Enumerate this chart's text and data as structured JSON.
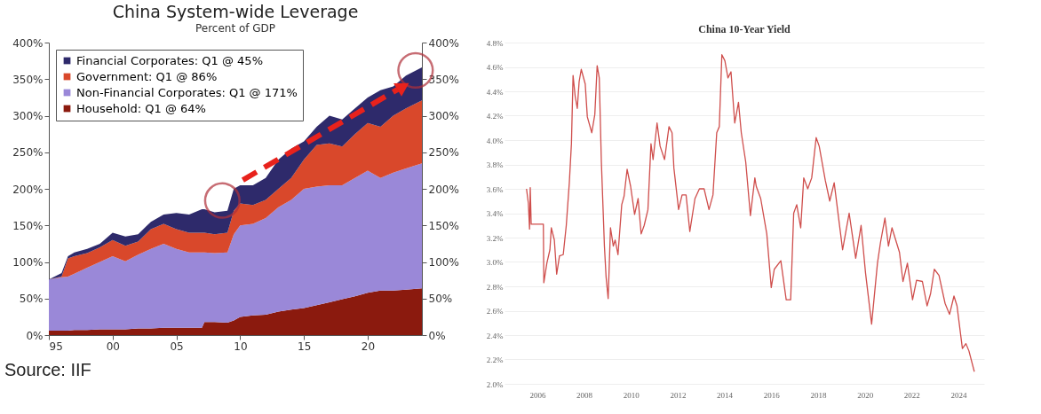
{
  "chart_data": [
    {
      "type": "area",
      "title": "China System-wide Leverage",
      "subtitle": "Percent of GDP",
      "stacked": true,
      "legend": "top left",
      "grid": false,
      "x": [
        1995,
        1996,
        1996.5,
        1997,
        1998,
        1999,
        2000,
        2001,
        2002,
        2003,
        2004,
        2005,
        2006,
        2007,
        2007.2,
        2008,
        2009,
        2009.5,
        2010,
        2011,
        2012,
        2013,
        2014,
        2015,
        2016,
        2017,
        2018,
        2019,
        2020,
        2021,
        2022,
        2023,
        2024.25
      ],
      "series": [
        {
          "name": "Household: Q1 @ 64%",
          "color": "#8b1a0e",
          "values": [
            6,
            6,
            6,
            7,
            7,
            8,
            8,
            8,
            9,
            9,
            10,
            10,
            10,
            10,
            18,
            18,
            17,
            20,
            25,
            27,
            28,
            32,
            35,
            37,
            41,
            45,
            49,
            53,
            58,
            61,
            61,
            62,
            64
          ]
        },
        {
          "name": "Non-Financial Corporates: Q1 @ 171%",
          "color": "#9a88d8",
          "values": [
            70,
            73,
            74,
            77,
            85,
            92,
            100,
            93,
            101,
            109,
            115,
            108,
            103,
            103,
            95,
            94,
            96,
            118,
            125,
            125,
            132,
            143,
            150,
            163,
            162,
            160,
            156,
            162,
            167,
            154,
            161,
            166,
            171
          ]
        },
        {
          "name": "Government: Q1 @ 86%",
          "color": "#d9482b",
          "values": [
            0,
            1,
            25,
            24,
            20,
            20,
            22,
            21,
            18,
            27,
            27,
            27,
            27,
            27,
            27,
            26,
            27,
            32,
            30,
            26,
            25,
            25,
            30,
            40,
            57,
            57,
            53,
            60,
            65,
            70,
            78,
            82,
            86
          ]
        },
        {
          "name": "Financial Corporates: Q1 @ 45%",
          "color": "#2e2a6b",
          "values": [
            0,
            5,
            3,
            5,
            6,
            5,
            10,
            13,
            10,
            10,
            13,
            22,
            25,
            32,
            32,
            30,
            30,
            30,
            25,
            27,
            30,
            40,
            40,
            25,
            25,
            38,
            37,
            35,
            35,
            50,
            40,
            45,
            45
          ]
        }
      ],
      "xlim": [
        1995,
        2024.25
      ],
      "xticks": [
        {
          "value": 1995,
          "label": "95"
        },
        {
          "value": 2000,
          "label": "00"
        },
        {
          "value": 2005,
          "label": "05"
        },
        {
          "value": 2010,
          "label": "10"
        },
        {
          "value": 2015,
          "label": "15"
        },
        {
          "value": 2020,
          "label": "20"
        }
      ],
      "ylim": [
        0,
        400
      ],
      "yticks": [
        {
          "value": 0,
          "label": "0%"
        },
        {
          "value": 50,
          "label": "50%"
        },
        {
          "value": 100,
          "label": "100%"
        },
        {
          "value": 150,
          "label": "150%"
        },
        {
          "value": 200,
          "label": "200%"
        },
        {
          "value": 250,
          "label": "250%"
        },
        {
          "value": 300,
          "label": "300%"
        },
        {
          "value": 350,
          "label": "350%"
        },
        {
          "value": 400,
          "label": "400%"
        }
      ],
      "y2lim": [
        0,
        400
      ],
      "y2ticks": [
        {
          "value": 0,
          "label": "0%"
        },
        {
          "value": 50,
          "label": "50%"
        },
        {
          "value": 100,
          "label": "100%"
        },
        {
          "value": 150,
          "label": "150%"
        },
        {
          "value": 200,
          "label": "200%"
        },
        {
          "value": 250,
          "label": "250%"
        },
        {
          "value": 300,
          "label": "300%"
        },
        {
          "value": 350,
          "label": "350%"
        },
        {
          "value": 400,
          "label": "400%"
        }
      ],
      "annotations": [
        "Source: IIF"
      ]
    },
    {
      "type": "line",
      "title": "China 10-Year Yield",
      "grid": "y",
      "series": [
        {
          "color": "#cf4e4c",
          "x": [
            2005.54,
            2005.62,
            2005.67,
            2005.7,
            2005.74,
            2006.26,
            2006.28,
            2006.41,
            2006.54,
            2006.6,
            2006.73,
            2006.83,
            2006.95,
            2007.11,
            2007.24,
            2007.37,
            2007.46,
            2007.53,
            2007.62,
            2007.71,
            2007.79,
            2007.88,
            2008.05,
            2008.14,
            2008.33,
            2008.46,
            2008.56,
            2008.65,
            2008.74,
            2008.87,
            2008.94,
            2009.03,
            2009.13,
            2009.25,
            2009.33,
            2009.45,
            2009.61,
            2009.71,
            2009.84,
            2009.99,
            2010.16,
            2010.31,
            2010.44,
            2010.57,
            2010.73,
            2010.86,
            2010.95,
            2011.12,
            2011.25,
            2011.44,
            2011.63,
            2011.76,
            2011.84,
            2012.04,
            2012.19,
            2012.36,
            2012.52,
            2012.74,
            2012.93,
            2013.13,
            2013.34,
            2013.51,
            2013.67,
            2013.78,
            2013.89,
            2014.02,
            2014.15,
            2014.28,
            2014.44,
            2014.6,
            2014.72,
            2014.91,
            2015.11,
            2015.3,
            2015.36,
            2015.55,
            2015.81,
            2016.0,
            2016.13,
            2016.41,
            2016.64,
            2016.83,
            2016.96,
            2017.09,
            2017.26,
            2017.39,
            2017.56,
            2017.73,
            2017.92,
            2018.05,
            2018.31,
            2018.5,
            2018.69,
            2019.05,
            2019.33,
            2019.61,
            2019.84,
            2020.03,
            2020.29,
            2020.54,
            2020.67,
            2020.86,
            2021.01,
            2021.16,
            2021.48,
            2021.63,
            2021.82,
            2022.04,
            2022.21,
            2022.46,
            2022.66,
            2022.81,
            2022.97,
            2023.17,
            2023.43,
            2023.62,
            2023.81,
            2023.94,
            2024.17,
            2024.32,
            2024.45,
            2024.68
          ],
          "values": [
            3.6,
            3.48,
            3.27,
            3.61,
            3.31,
            3.31,
            2.83,
            2.99,
            3.1,
            3.28,
            3.18,
            2.9,
            3.05,
            3.06,
            3.3,
            3.65,
            3.97,
            4.53,
            4.36,
            4.26,
            4.48,
            4.58,
            4.46,
            4.19,
            4.06,
            4.21,
            4.61,
            4.51,
            3.82,
            3.13,
            2.88,
            2.7,
            3.28,
            3.13,
            3.18,
            3.06,
            3.47,
            3.54,
            3.76,
            3.62,
            3.39,
            3.52,
            3.23,
            3.3,
            3.43,
            3.97,
            3.84,
            4.14,
            3.95,
            3.84,
            4.11,
            4.06,
            3.77,
            3.43,
            3.55,
            3.55,
            3.25,
            3.52,
            3.6,
            3.6,
            3.43,
            3.55,
            4.06,
            4.11,
            4.7,
            4.65,
            4.51,
            4.56,
            4.14,
            4.31,
            4.06,
            3.82,
            3.38,
            3.69,
            3.62,
            3.52,
            3.23,
            2.79,
            2.94,
            3.01,
            2.69,
            2.69,
            3.4,
            3.47,
            3.28,
            3.69,
            3.6,
            3.69,
            4.02,
            3.95,
            3.67,
            3.5,
            3.65,
            3.1,
            3.4,
            3.03,
            3.3,
            2.91,
            2.49,
            2.99,
            3.16,
            3.36,
            3.13,
            3.28,
            3.08,
            2.84,
            2.99,
            2.69,
            2.85,
            2.84,
            2.64,
            2.74,
            2.94,
            2.89,
            2.66,
            2.57,
            2.72,
            2.64,
            2.29,
            2.33,
            2.27,
            2.1
          ]
        }
      ],
      "xlim": [
        2004.6,
        2025.1
      ],
      "xticks": [
        2006,
        2008,
        2010,
        2012,
        2014,
        2016,
        2018,
        2020,
        2022,
        2024
      ],
      "ylim": [
        2.0,
        4.8
      ],
      "yticks": [
        {
          "value": 2.0,
          "label": "2.0%"
        },
        {
          "value": 2.2,
          "label": "2.2%"
        },
        {
          "value": 2.4,
          "label": "2.4%"
        },
        {
          "value": 2.6,
          "label": "2.6%"
        },
        {
          "value": 2.8,
          "label": "2.8%"
        },
        {
          "value": 3.0,
          "label": "3.0%"
        },
        {
          "value": 3.2,
          "label": "3.2%"
        },
        {
          "value": 3.4,
          "label": "3.4%"
        },
        {
          "value": 3.6,
          "label": "3.6%"
        },
        {
          "value": 3.8,
          "label": "3.8%"
        },
        {
          "value": 4.0,
          "label": "4.0%"
        },
        {
          "value": 4.2,
          "label": "4.2%"
        },
        {
          "value": 4.4,
          "label": "4.4%"
        },
        {
          "value": 4.6,
          "label": "4.6%"
        },
        {
          "value": 4.8,
          "label": "4.8%"
        }
      ]
    }
  ]
}
